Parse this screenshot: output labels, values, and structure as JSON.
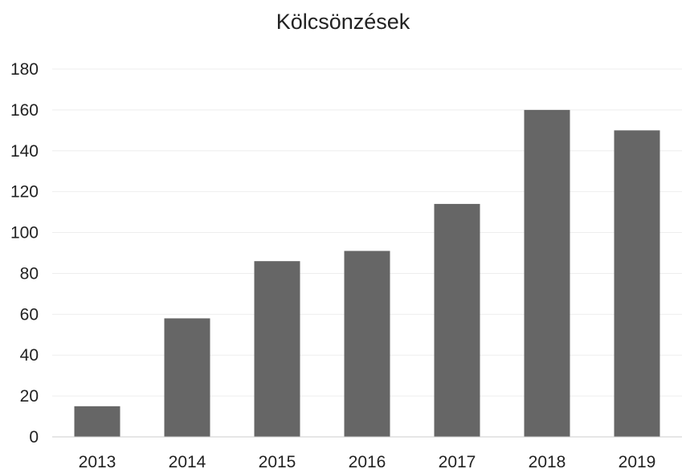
{
  "chart_data": {
    "type": "bar",
    "title": "Kölcsönzések",
    "xlabel": "",
    "ylabel": "",
    "categories": [
      "2013",
      "2014",
      "2015",
      "2016",
      "2017",
      "2018",
      "2019"
    ],
    "values": [
      15,
      58,
      86,
      91,
      114,
      160,
      150
    ],
    "ylim": [
      0,
      180
    ],
    "yticks": [
      "0",
      "20",
      "40",
      "60",
      "80",
      "100",
      "120",
      "140",
      "160",
      "180"
    ],
    "grid": true,
    "legend": "none",
    "bar_color": "#666666",
    "grid_color": "#eeeeee",
    "axis_color": "#cccccc"
  }
}
